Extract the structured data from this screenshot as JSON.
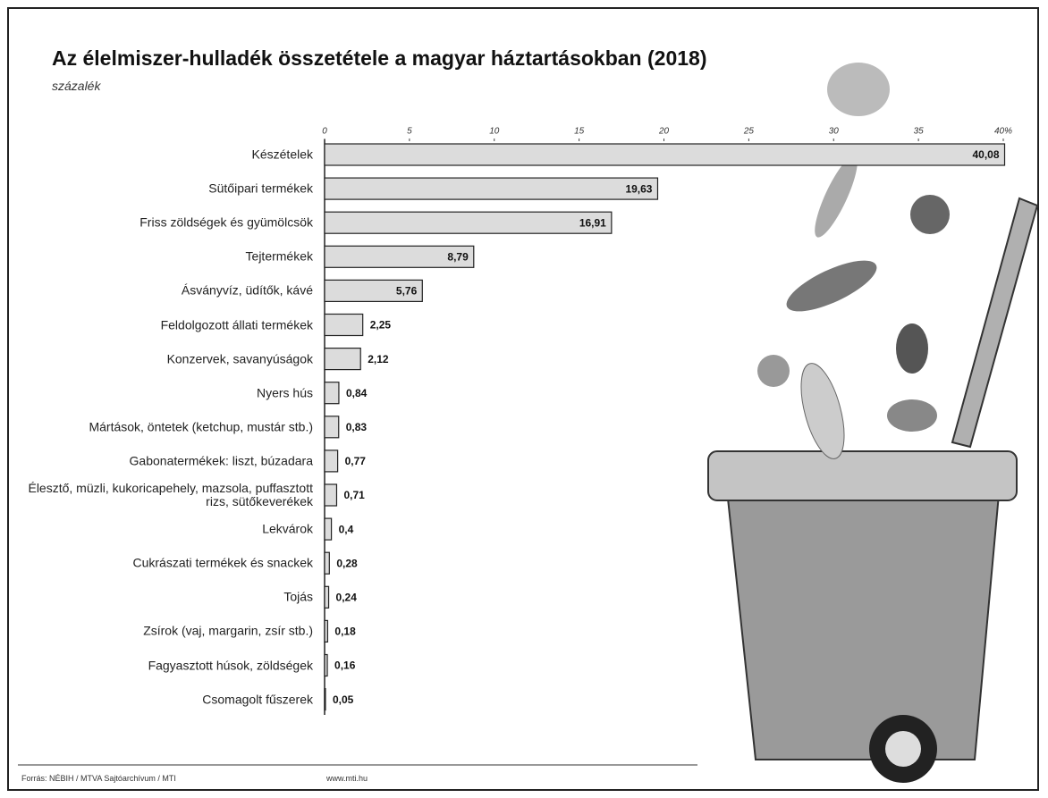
{
  "chart_data": {
    "type": "bar",
    "orientation": "horizontal",
    "title": "Az élelmiszer-hulladék összetétele a magyar háztartásokban (2018)",
    "subtitle": "százalék",
    "source": "Forrás: NÉBIH / MTVA Sajtóarchívum / MTI",
    "website": "www.mti.hu",
    "categories": [
      "Készételek",
      "Sütőipari termékek",
      "Friss zöldségek és gyümölcsök",
      "Tejtermékek",
      "Ásványvíz, üdítők, kávé",
      "Feldolgozott állati termékek",
      "Konzervek, savanyúságok",
      "Nyers hús",
      "Mártások, öntetek (ketchup, mustár stb.)",
      "Gabonatermékek: liszt, búzadara",
      "Élesztő, müzli, kukoricapehely, mazsola, puffasztott rizs, sütőkeverékek",
      "Lekvárok",
      "Cukrászati termékek és snackek",
      "Tojás",
      "Zsírok (vaj, margarin, zsír stb.)",
      "Fagyasztott húsok, zöldségek",
      "Csomagolt fűszerek"
    ],
    "values": [
      40.08,
      19.63,
      16.91,
      8.79,
      5.76,
      2.25,
      2.12,
      0.84,
      0.83,
      0.77,
      0.71,
      0.4,
      0.28,
      0.24,
      0.18,
      0.16,
      0.05
    ],
    "value_labels": [
      "40,08",
      "19,63",
      "16,91",
      "8,79",
      "5,76",
      "2,25",
      "2,12",
      "0,84",
      "0,83",
      "0,77",
      "0,71",
      "0,4",
      "0,28",
      "0,24",
      "0,18",
      "0,16",
      "0,05"
    ],
    "color": "#dcdcdc",
    "xlim": [
      0,
      40
    ],
    "xticks": [
      0,
      5,
      10,
      15,
      20,
      25,
      30,
      35,
      {
        "value": 40,
        "label": "40%"
      }
    ]
  }
}
